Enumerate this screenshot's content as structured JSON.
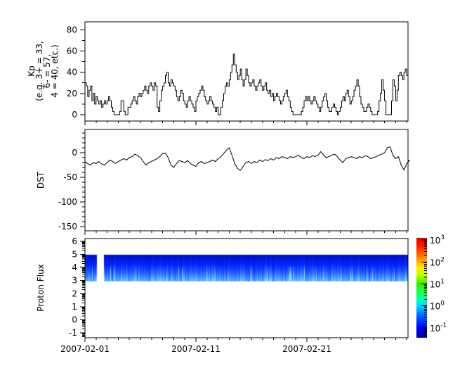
{
  "figure": {
    "background": "#ffffff",
    "axis_color": "#000000",
    "line_color": "#000000"
  },
  "panels": {
    "kp": {
      "ylabel_lines": [
        "Kp",
        "(e.g. 3+ = 33,",
        "6- = 57,",
        "4 = 40, etc.)"
      ],
      "yticks": [
        0,
        20,
        40,
        60,
        80
      ],
      "yminors": [
        10,
        30,
        50,
        70
      ],
      "ylim": [
        -6,
        87.5
      ]
    },
    "dst": {
      "ylabel": "DST",
      "yticks": [
        0,
        -50,
        -100,
        -150
      ],
      "yminors": [
        40,
        30,
        20,
        10,
        -10,
        -20,
        -30,
        -40,
        -60,
        -70,
        -80,
        -90,
        -110,
        -120,
        -130,
        -140
      ],
      "ylim": [
        -158.6,
        47.1
      ]
    },
    "proton": {
      "ylabel": "Proton Flux",
      "yticks": [
        6,
        5,
        4,
        3,
        2,
        1,
        0,
        -1
      ],
      "log_minor_decades": [
        -2,
        -1,
        0,
        1,
        2,
        3,
        4,
        5
      ],
      "ylim": [
        -1.38,
        6.22
      ]
    }
  },
  "x_axis": {
    "major_days": [
      0,
      10,
      20
    ],
    "major_labels": [
      "2007-02-01",
      "2007-02-11",
      "2007-02-21"
    ],
    "minor_step_days": 1,
    "xlim_days": [
      0,
      29.114
    ]
  },
  "colorbar": {
    "exponent_ticks": [
      3,
      2,
      1,
      0,
      -1
    ],
    "exp_range": [
      -1.455,
      3.1
    ],
    "gradient_stops": [
      [
        0,
        "#000090"
      ],
      [
        10,
        "#0000ff"
      ],
      [
        20,
        "#0050ff"
      ],
      [
        28,
        "#00a8ff"
      ],
      [
        32,
        "#00d8ff"
      ],
      [
        38,
        "#00ffb0"
      ],
      [
        45,
        "#20ff50"
      ],
      [
        54,
        "#40e800"
      ],
      [
        63,
        "#c0ff00"
      ],
      [
        70,
        "#ffe800"
      ],
      [
        76,
        "#ffb000"
      ],
      [
        84,
        "#ff6000"
      ],
      [
        92,
        "#ff1800"
      ],
      [
        100,
        "#e00000"
      ]
    ],
    "band_colors": {
      "top": "#000098",
      "mid": "#0028ff",
      "low": "#3a7cff",
      "streak": "#80d8ff"
    }
  },
  "chart_data": [
    {
      "id": "kp",
      "type": "line",
      "mode": "steps",
      "panel": "kp",
      "title": "Kp index (e.g. 3+ = 33, 6- = 57, 4 = 40, etc.)",
      "x_start_day": 0,
      "x_step_days": 0.125,
      "values": [
        30,
        27,
        17,
        23,
        27,
        13,
        20,
        10,
        17,
        13,
        10,
        13,
        7,
        10,
        13,
        10,
        13,
        17,
        13,
        7,
        3,
        0,
        0,
        0,
        0,
        3,
        13,
        13,
        3,
        0,
        0,
        7,
        7,
        10,
        13,
        17,
        13,
        10,
        17,
        20,
        17,
        20,
        23,
        27,
        23,
        20,
        27,
        30,
        27,
        23,
        30,
        27,
        7,
        3,
        13,
        23,
        27,
        30,
        37,
        40,
        30,
        27,
        33,
        30,
        27,
        23,
        17,
        13,
        17,
        23,
        20,
        13,
        10,
        7,
        13,
        17,
        13,
        10,
        7,
        3,
        13,
        17,
        20,
        23,
        27,
        23,
        17,
        13,
        10,
        13,
        17,
        13,
        10,
        7,
        3,
        7,
        0,
        0,
        7,
        13,
        20,
        27,
        30,
        27,
        33,
        40,
        47,
        57,
        47,
        40,
        33,
        37,
        43,
        33,
        27,
        33,
        43,
        37,
        30,
        27,
        30,
        33,
        27,
        23,
        27,
        30,
        33,
        27,
        23,
        27,
        30,
        23,
        20,
        23,
        17,
        20,
        13,
        17,
        20,
        17,
        13,
        10,
        13,
        17,
        20,
        23,
        17,
        13,
        7,
        3,
        0,
        0,
        0,
        0,
        0,
        0,
        3,
        7,
        13,
        17,
        13,
        17,
        13,
        10,
        13,
        17,
        13,
        10,
        7,
        3,
        7,
        13,
        17,
        20,
        13,
        7,
        3,
        3,
        7,
        10,
        7,
        3,
        0,
        3,
        7,
        13,
        17,
        13,
        20,
        23,
        17,
        10,
        13,
        17,
        23,
        27,
        33,
        27,
        17,
        10,
        7,
        3,
        3,
        7,
        10,
        7,
        3,
        0,
        0,
        0,
        0,
        3,
        13,
        20,
        33,
        23,
        13,
        0,
        0,
        0,
        0,
        13,
        33,
        27,
        13,
        23,
        37,
        40,
        37,
        33,
        40,
        43,
        37,
        40
      ]
    },
    {
      "id": "dst",
      "type": "line",
      "mode": "linear",
      "panel": "dst",
      "title": "DST",
      "x_start_day": 0,
      "x_step_days": 0.25,
      "values": [
        -18,
        -22,
        -25,
        -20,
        -22,
        -18,
        -23,
        -25,
        -20,
        -15,
        -18,
        -22,
        -18,
        -15,
        -12,
        -15,
        -10,
        -8,
        -3,
        -6,
        -10,
        -18,
        -25,
        -20,
        -18,
        -15,
        -12,
        -8,
        -2,
        -1,
        -10,
        -25,
        -30,
        -22,
        -16,
        -18,
        -20,
        -16,
        -22,
        -25,
        -28,
        -20,
        -18,
        -22,
        -20,
        -18,
        -15,
        -18,
        -12,
        -8,
        -2,
        5,
        10,
        -5,
        -22,
        -32,
        -36,
        -28,
        -20,
        -18,
        -22,
        -18,
        -20,
        -15,
        -18,
        -14,
        -16,
        -12,
        -15,
        -10,
        -12,
        -8,
        -10,
        -12,
        -8,
        -10,
        -8,
        -5,
        -10,
        -12,
        -8,
        -10,
        -6,
        -8,
        -5,
        2,
        -5,
        -10,
        -8,
        -5,
        -3,
        -8,
        -15,
        -20,
        -12,
        -10,
        -8,
        -10,
        -12,
        -8,
        -10,
        -6,
        -8,
        -12,
        -10,
        -8,
        -5,
        -3,
        0,
        10,
        12,
        -5,
        -12,
        -8,
        -25,
        -35,
        -22,
        -16
      ]
    },
    {
      "id": "proton_flux",
      "type": "heatmap",
      "panel": "proton",
      "title": "Proton Flux",
      "y_band": [
        3,
        5
      ],
      "segments_days": [
        [
          0,
          1.08
        ],
        [
          1.71,
          29.114
        ]
      ],
      "flux_log10_range": [
        -1.5,
        3
      ],
      "dominant_flux_log10": -0.7
    }
  ]
}
